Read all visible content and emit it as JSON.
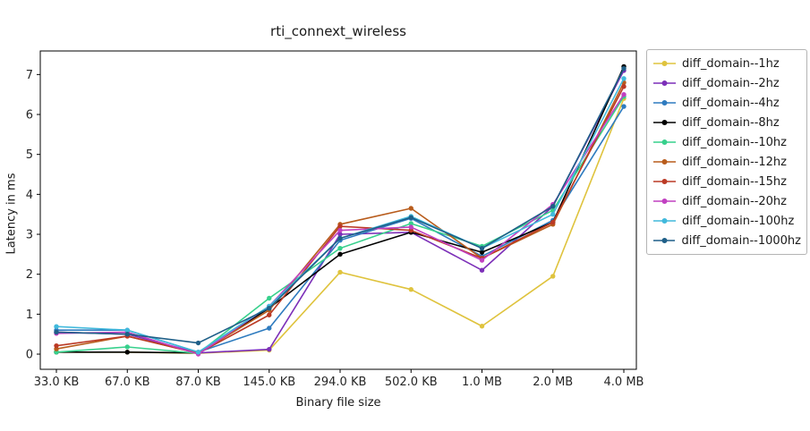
{
  "figure": {
    "title": "rti_connext_wireless",
    "xlabel": "Binary file size",
    "ylabel": "Latency in ms"
  },
  "chart_data": {
    "type": "line",
    "title": "rti_connext_wireless",
    "xlabel": "Binary file size",
    "ylabel": "Latency in ms",
    "categories": [
      "33.0 KB",
      "67.0 KB",
      "87.0 KB",
      "145.0 KB",
      "294.0 KB",
      "502.0 KB",
      "1.0 MB",
      "2.0 MB",
      "4.0 MB"
    ],
    "y_ticks": [
      0,
      1,
      2,
      3,
      4,
      5,
      6,
      7
    ],
    "ylim": [
      -0.38,
      7.59
    ],
    "grid": false,
    "legend_position": "outside-right",
    "axis_color": "#000000",
    "tick_label_color": "#262626",
    "series": [
      {
        "name": "diff_domain--1hz",
        "color": "#dfc33d",
        "values": [
          0.05,
          0.05,
          0.02,
          0.1,
          2.05,
          1.62,
          0.7,
          1.95,
          6.4
        ]
      },
      {
        "name": "diff_domain--2hz",
        "color": "#7c2fb8",
        "values": [
          0.55,
          0.5,
          0.03,
          0.12,
          3.0,
          3.05,
          2.1,
          3.7,
          7.1
        ]
      },
      {
        "name": "diff_domain--4hz",
        "color": "#2e7bbf",
        "values": [
          0.6,
          0.6,
          0.05,
          0.65,
          2.85,
          3.4,
          2.45,
          3.35,
          6.2
        ]
      },
      {
        "name": "diff_domain--8hz",
        "color": "#000000",
        "values": [
          0.05,
          0.05,
          0.03,
          1.15,
          2.5,
          3.05,
          2.55,
          3.3,
          7.2
        ]
      },
      {
        "name": "diff_domain--10hz",
        "color": "#37d08c",
        "values": [
          0.05,
          0.18,
          0.02,
          1.4,
          2.65,
          3.27,
          2.7,
          3.6,
          6.45
        ]
      },
      {
        "name": "diff_domain--12hz",
        "color": "#b85c1c",
        "values": [
          0.13,
          0.45,
          0.02,
          1.1,
          3.25,
          3.65,
          2.4,
          3.25,
          6.8
        ]
      },
      {
        "name": "diff_domain--15hz",
        "color": "#bb3a25",
        "values": [
          0.21,
          0.45,
          0.02,
          0.98,
          3.2,
          3.1,
          2.4,
          3.3,
          6.7
        ]
      },
      {
        "name": "diff_domain--20hz",
        "color": "#c140c1",
        "values": [
          0.52,
          0.55,
          0.0,
          1.2,
          3.1,
          3.18,
          2.35,
          3.75,
          6.5
        ]
      },
      {
        "name": "diff_domain--100hz",
        "color": "#41b9dc",
        "values": [
          0.69,
          0.6,
          0.05,
          1.2,
          2.9,
          3.45,
          2.65,
          3.5,
          6.9
        ]
      },
      {
        "name": "diff_domain--1000hz",
        "color": "#1f5f88",
        "values": [
          0.55,
          0.5,
          0.28,
          1.15,
          2.9,
          3.42,
          2.65,
          3.7,
          7.15
        ]
      }
    ]
  }
}
